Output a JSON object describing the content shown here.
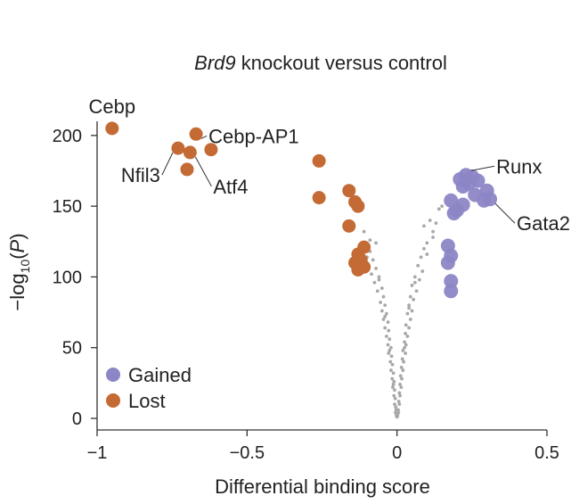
{
  "chart_data": {
    "type": "scatter",
    "title_italic": "Brd9",
    "title_rest": " knockout versus control",
    "xlabel": "Differential binding score",
    "ylabel_prefix": "−log",
    "ylabel_sub": "10",
    "ylabel_open": "(",
    "ylabel_var": "P",
    "ylabel_close": ")",
    "xlim": [
      -1,
      0.5
    ],
    "ylim": [
      0,
      210
    ],
    "x_ticks": [
      {
        "value": -1,
        "label": "−1"
      },
      {
        "value": -0.5,
        "label": "−0.5"
      },
      {
        "value": 0,
        "label": "0"
      },
      {
        "value": 0.5,
        "label": "0.5"
      }
    ],
    "y_ticks": [
      {
        "value": 0,
        "label": "0"
      },
      {
        "value": 50,
        "label": "50"
      },
      {
        "value": 100,
        "label": "100"
      },
      {
        "value": 150,
        "label": "150"
      },
      {
        "value": 200,
        "label": "200"
      }
    ],
    "grid": false,
    "legend_position": "bottom-left",
    "colors": {
      "gained": "#8c86c6",
      "lost": "#c36a35",
      "background": "#a8a8a8"
    },
    "series": [
      {
        "name": "Gained",
        "key": "gained",
        "points": [
          [
            0.23,
            172
          ],
          [
            0.25,
            171
          ],
          [
            0.21,
            169
          ],
          [
            0.27,
            168
          ],
          [
            0.24,
            166
          ],
          [
            0.22,
            164
          ],
          [
            0.3,
            161
          ],
          [
            0.26,
            158
          ],
          [
            0.31,
            155
          ],
          [
            0.29,
            154
          ],
          [
            0.18,
            154
          ],
          [
            0.22,
            151
          ],
          [
            0.2,
            147
          ],
          [
            0.19,
            145
          ],
          [
            0.17,
            122
          ],
          [
            0.18,
            115
          ],
          [
            0.17,
            110
          ],
          [
            0.18,
            97
          ],
          [
            0.18,
            90
          ]
        ]
      },
      {
        "name": "Lost",
        "key": "lost",
        "points": [
          [
            -0.95,
            205
          ],
          [
            -0.67,
            201
          ],
          [
            -0.73,
            191
          ],
          [
            -0.62,
            190
          ],
          [
            -0.69,
            188
          ],
          [
            -0.7,
            176
          ],
          [
            -0.26,
            182
          ],
          [
            -0.16,
            161
          ],
          [
            -0.26,
            156
          ],
          [
            -0.14,
            153
          ],
          [
            -0.13,
            150
          ],
          [
            -0.16,
            136
          ],
          [
            -0.11,
            121
          ],
          [
            -0.13,
            116
          ],
          [
            -0.12,
            112
          ],
          [
            -0.14,
            110
          ],
          [
            -0.11,
            107
          ],
          [
            -0.13,
            105
          ]
        ]
      },
      {
        "key": "background",
        "points": [
          [
            -0.09,
            118
          ],
          [
            -0.08,
            112
          ],
          [
            -0.1,
            114
          ],
          [
            -0.07,
            106
          ],
          [
            -0.085,
            102
          ],
          [
            -0.06,
            100
          ],
          [
            -0.075,
            96
          ],
          [
            -0.05,
            92
          ],
          [
            -0.065,
            90
          ],
          [
            -0.045,
            86
          ],
          [
            -0.055,
            82
          ],
          [
            -0.04,
            80
          ],
          [
            -0.05,
            76
          ],
          [
            -0.035,
            74
          ],
          [
            -0.045,
            70
          ],
          [
            -0.03,
            68
          ],
          [
            -0.04,
            64
          ],
          [
            -0.028,
            62
          ],
          [
            -0.035,
            58
          ],
          [
            -0.025,
            56
          ],
          [
            -0.03,
            52
          ],
          [
            -0.02,
            50
          ],
          [
            -0.028,
            46
          ],
          [
            -0.018,
            44
          ],
          [
            -0.022,
            40
          ],
          [
            -0.015,
            38
          ],
          [
            -0.02,
            34
          ],
          [
            -0.012,
            32
          ],
          [
            -0.016,
            28
          ],
          [
            -0.01,
            26
          ],
          [
            -0.014,
            22
          ],
          [
            -0.008,
            20
          ],
          [
            -0.01,
            16
          ],
          [
            -0.006,
            14
          ],
          [
            -0.008,
            10
          ],
          [
            -0.004,
            8
          ],
          [
            -0.005,
            4
          ],
          [
            -0.002,
            2
          ],
          [
            0.0,
            1
          ],
          [
            -0.003,
            6
          ],
          [
            -0.07,
            124
          ],
          [
            -0.09,
            126
          ],
          [
            -0.06,
            98
          ],
          [
            -0.04,
            72
          ],
          [
            -0.025,
            48
          ],
          [
            -0.012,
            24
          ],
          [
            0.09,
            120
          ],
          [
            0.08,
            114
          ],
          [
            0.1,
            116
          ],
          [
            0.07,
            108
          ],
          [
            0.085,
            104
          ],
          [
            0.06,
            100
          ],
          [
            0.075,
            98
          ],
          [
            0.05,
            94
          ],
          [
            0.065,
            90
          ],
          [
            0.045,
            86
          ],
          [
            0.055,
            84
          ],
          [
            0.04,
            80
          ],
          [
            0.05,
            76
          ],
          [
            0.035,
            74
          ],
          [
            0.045,
            70
          ],
          [
            0.03,
            66
          ],
          [
            0.04,
            64
          ],
          [
            0.028,
            60
          ],
          [
            0.035,
            58
          ],
          [
            0.025,
            54
          ],
          [
            0.03,
            52
          ],
          [
            0.02,
            48
          ],
          [
            0.028,
            46
          ],
          [
            0.018,
            42
          ],
          [
            0.022,
            40
          ],
          [
            0.015,
            36
          ],
          [
            0.02,
            34
          ],
          [
            0.012,
            30
          ],
          [
            0.016,
            28
          ],
          [
            0.01,
            24
          ],
          [
            0.014,
            22
          ],
          [
            0.008,
            18
          ],
          [
            0.01,
            16
          ],
          [
            0.006,
            12
          ],
          [
            0.008,
            10
          ],
          [
            0.004,
            6
          ],
          [
            0.005,
            4
          ],
          [
            0.002,
            2
          ],
          [
            0.09,
            136
          ],
          [
            0.11,
            140
          ],
          [
            0.12,
            128
          ],
          [
            0.14,
            148
          ],
          [
            0.12,
            132
          ],
          [
            0.1,
            124
          ],
          [
            0.13,
            138
          ],
          [
            0.06,
            96
          ],
          [
            0.04,
            78
          ],
          [
            0.025,
            50
          ],
          [
            -0.11,
            132
          ],
          [
            0.15,
            150
          ]
        ]
      }
    ],
    "annotations": [
      {
        "text": "Cebp",
        "series": "lost",
        "point": 0
      },
      {
        "text": "Cebp-AP1",
        "series": "lost",
        "point": 1
      },
      {
        "text": "Nfil3",
        "series": "lost",
        "point": 2
      },
      {
        "text": "Atf4",
        "series": "lost",
        "point": 4
      },
      {
        "text": "Runx",
        "series": "gained",
        "point": 0
      },
      {
        "text": "Gata2",
        "series": "gained",
        "point": 8
      }
    ],
    "legend": [
      {
        "label": "Gained",
        "key": "gained"
      },
      {
        "label": "Lost",
        "key": "lost"
      }
    ]
  }
}
